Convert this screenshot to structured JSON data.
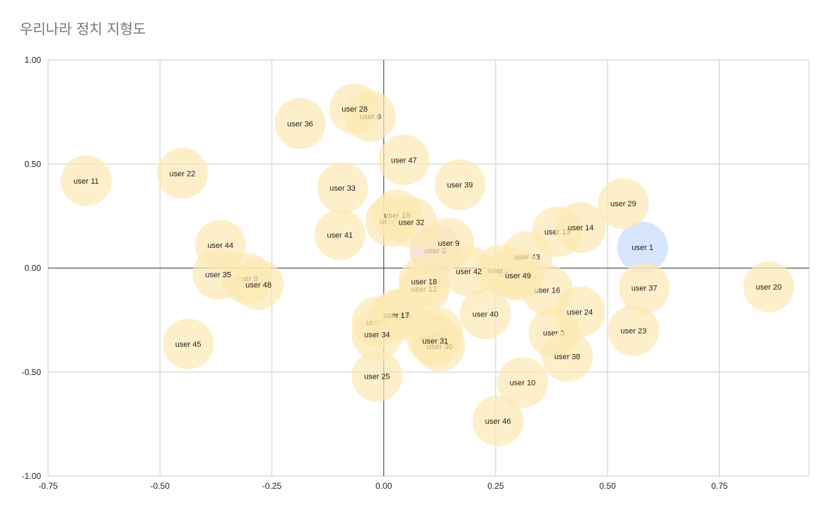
{
  "chart_data": {
    "type": "scatter",
    "title": "우리나라 정치 지형도",
    "xlabel": "",
    "ylabel": "",
    "xlim": [
      -0.75,
      0.95
    ],
    "ylim": [
      -1.0,
      1.0
    ],
    "x_ticks": [
      {
        "value": -0.75,
        "label": "-0.75"
      },
      {
        "value": -0.5,
        "label": "-0.50"
      },
      {
        "value": -0.25,
        "label": "-0.25"
      },
      {
        "value": 0,
        "label": "0.00"
      },
      {
        "value": 0.25,
        "label": "0.25"
      },
      {
        "value": 0.5,
        "label": "0.50"
      },
      {
        "value": 0.75,
        "label": "0.75"
      }
    ],
    "y_ticks": [
      {
        "value": 1.0,
        "label": "1.00"
      },
      {
        "value": 0.5,
        "label": "0.50"
      },
      {
        "value": 0,
        "label": "0.00"
      },
      {
        "value": -0.5,
        "label": "-0.50"
      },
      {
        "value": -1.0,
        "label": "-1.00"
      }
    ],
    "grid": true,
    "legend": "none",
    "colors": {
      "default": "#fce8b2",
      "highlight_blue": "#c6dafc",
      "highlight_red": "#f9d6cf",
      "grid": "#cccccc",
      "axis": "#333333"
    },
    "points": [
      {
        "label": "user 1",
        "x": 0.578,
        "y": 0.1,
        "color": "#c6dafc"
      },
      {
        "label": "user 2",
        "x": 0.115,
        "y": 0.085,
        "color": "#f9d6cf"
      },
      {
        "label": "user 3",
        "x": 0.38,
        "y": -0.31
      },
      {
        "label": "user 4",
        "x": 0.015,
        "y": 0.225
      },
      {
        "label": "user 5",
        "x": 0.035,
        "y": -0.225
      },
      {
        "label": "user 6",
        "x": -0.03,
        "y": 0.73
      },
      {
        "label": "user 7",
        "x": -0.015,
        "y": -0.26
      },
      {
        "label": "user 8",
        "x": -0.305,
        "y": -0.05
      },
      {
        "label": "user 9",
        "x": 0.145,
        "y": 0.12
      },
      {
        "label": "user 10",
        "x": 0.31,
        "y": -0.55
      },
      {
        "label": "user 11",
        "x": -0.665,
        "y": 0.42
      },
      {
        "label": "user 12",
        "x": 0.09,
        "y": -0.1
      },
      {
        "label": "user 13",
        "x": 0.388,
        "y": 0.175
      },
      {
        "label": "user 14",
        "x": 0.44,
        "y": 0.195
      },
      {
        "label": "user 15",
        "x": 0.12,
        "y": -0.31
      },
      {
        "label": "user 16",
        "x": 0.365,
        "y": -0.105
      },
      {
        "label": "user 17",
        "x": 0.028,
        "y": -0.225
      },
      {
        "label": "user 18",
        "x": 0.09,
        "y": -0.065
      },
      {
        "label": "user 19",
        "x": 0.03,
        "y": 0.255
      },
      {
        "label": "user 20",
        "x": 0.86,
        "y": -0.09
      },
      {
        "label": "user 21",
        "x": 0.285,
        "y": -0.025
      },
      {
        "label": "user 22",
        "x": -0.45,
        "y": 0.455
      },
      {
        "label": "user 23",
        "x": 0.558,
        "y": -0.3
      },
      {
        "label": "user 24",
        "x": 0.438,
        "y": -0.21
      },
      {
        "label": "user 25",
        "x": -0.015,
        "y": -0.52
      },
      {
        "label": "user 26",
        "x": 0.108,
        "y": -0.335
      },
      {
        "label": "user 27",
        "x": 0.262,
        "y": -0.01
      },
      {
        "label": "user 28",
        "x": -0.065,
        "y": 0.765
      },
      {
        "label": "user 29",
        "x": 0.535,
        "y": 0.31
      },
      {
        "label": "user 30",
        "x": 0.125,
        "y": -0.375
      },
      {
        "label": "user 31",
        "x": 0.115,
        "y": -0.35
      },
      {
        "label": "user 32",
        "x": 0.062,
        "y": 0.22
      },
      {
        "label": "user 33",
        "x": -0.092,
        "y": 0.385
      },
      {
        "label": "user 34",
        "x": -0.015,
        "y": -0.32
      },
      {
        "label": "user 35",
        "x": -0.37,
        "y": -0.03
      },
      {
        "label": "user 36",
        "x": -0.187,
        "y": 0.695
      },
      {
        "label": "user 37",
        "x": 0.582,
        "y": -0.095
      },
      {
        "label": "user 38",
        "x": 0.41,
        "y": -0.425
      },
      {
        "label": "user 39",
        "x": 0.17,
        "y": 0.4
      },
      {
        "label": "user 40",
        "x": 0.227,
        "y": -0.22
      },
      {
        "label": "user 41",
        "x": -0.098,
        "y": 0.16
      },
      {
        "label": "user 42",
        "x": 0.19,
        "y": -0.015
      },
      {
        "label": "user 43",
        "x": 0.32,
        "y": 0.055
      },
      {
        "label": "user 44",
        "x": -0.365,
        "y": 0.11
      },
      {
        "label": "user 45",
        "x": -0.437,
        "y": -0.365
      },
      {
        "label": "user 46",
        "x": 0.255,
        "y": -0.735
      },
      {
        "label": "user 47",
        "x": 0.045,
        "y": 0.52
      },
      {
        "label": "user 48",
        "x": -0.28,
        "y": -0.08
      },
      {
        "label": "user 49",
        "x": 0.3,
        "y": -0.035
      }
    ]
  }
}
